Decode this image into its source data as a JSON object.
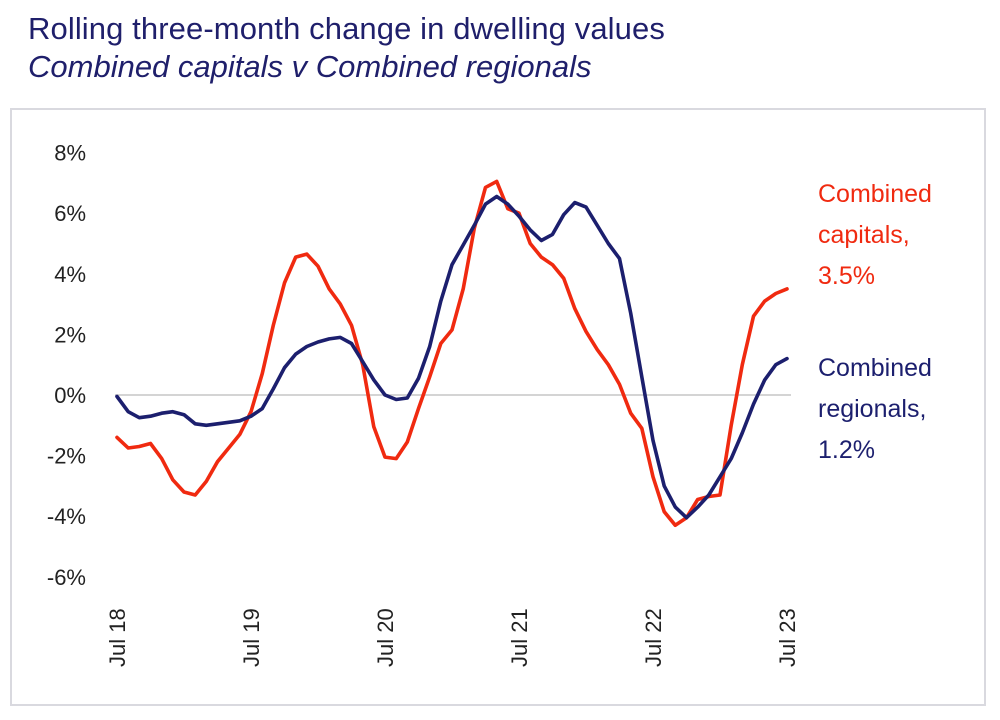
{
  "header": {
    "title": "Rolling three-month change in dwelling values",
    "subtitle": "Combined capitals v Combined regionals"
  },
  "colors": {
    "title": "#1f1f6b",
    "capitals": "#f02a10",
    "regionals": "#1c1f6e",
    "zero_line": "#d4d4d4",
    "frame": "#d9d9df"
  },
  "legend": {
    "capitals": {
      "line1": "Combined",
      "line2": "capitals,",
      "line3": "3.5%"
    },
    "regionals": {
      "line1": "Combined",
      "line2": "regionals,",
      "line3": "1.2%"
    }
  },
  "chart_data": {
    "type": "line",
    "title": "Rolling three-month change in dwelling values",
    "subtitle": "Combined capitals v Combined regionals",
    "xlabel": "",
    "ylabel": "",
    "x_start": "Jul 2018",
    "x_end": "Jul 2023",
    "x_frequency": "monthly",
    "x_tick_labels": [
      "Jul 18",
      "Jul 19",
      "Jul 20",
      "Jul 21",
      "Jul 22",
      "Jul 23"
    ],
    "x_tick_month_index": [
      0,
      12,
      24,
      36,
      48,
      60
    ],
    "y_tick_labels": [
      "8%",
      "6%",
      "4%",
      "2%",
      "0%",
      "-2%",
      "-4%",
      "-6%"
    ],
    "y_tick_values": [
      8,
      6,
      4,
      2,
      0,
      -2,
      -4,
      -6
    ],
    "ylim": [
      -6,
      8
    ],
    "grid": false,
    "zero_line": true,
    "legend_placement": "right (direct labels)",
    "series": [
      {
        "name": "Combined capitals",
        "final_label": "3.5%",
        "color": "#f02a10",
        "values": [
          -1.4,
          -1.75,
          -1.7,
          -1.6,
          -2.1,
          -2.8,
          -3.2,
          -3.3,
          -2.85,
          -2.2,
          -1.75,
          -1.3,
          -0.55,
          0.7,
          2.3,
          3.7,
          4.55,
          4.65,
          4.25,
          3.5,
          3.0,
          2.3,
          1.0,
          -1.05,
          -2.05,
          -2.1,
          -1.55,
          -0.45,
          0.6,
          1.7,
          2.15,
          3.5,
          5.5,
          6.85,
          7.05,
          6.15,
          6.0,
          5.0,
          4.55,
          4.3,
          3.85,
          2.85,
          2.1,
          1.5,
          1.0,
          0.35,
          -0.6,
          -1.1,
          -2.7,
          -3.85,
          -4.3,
          -4.05,
          -3.45,
          -3.35,
          -3.3,
          -1.0,
          1.0,
          2.6,
          3.1,
          3.35,
          3.5
        ]
      },
      {
        "name": "Combined regionals",
        "final_label": "1.2%",
        "color": "#1c1f6e",
        "values": [
          -0.05,
          -0.55,
          -0.75,
          -0.7,
          -0.6,
          -0.55,
          -0.65,
          -0.95,
          -1.0,
          -0.95,
          -0.9,
          -0.85,
          -0.7,
          -0.45,
          0.2,
          0.9,
          1.35,
          1.6,
          1.75,
          1.85,
          1.9,
          1.7,
          1.1,
          0.5,
          0.0,
          -0.15,
          -0.1,
          0.55,
          1.6,
          3.1,
          4.3,
          4.95,
          5.6,
          6.3,
          6.55,
          6.3,
          5.9,
          5.45,
          5.1,
          5.3,
          5.95,
          6.35,
          6.2,
          5.6,
          5.0,
          4.5,
          2.7,
          0.6,
          -1.5,
          -3.0,
          -3.7,
          -4.05,
          -3.7,
          -3.3,
          -2.7,
          -2.1,
          -1.25,
          -0.3,
          0.5,
          1.0,
          1.2
        ]
      }
    ]
  }
}
